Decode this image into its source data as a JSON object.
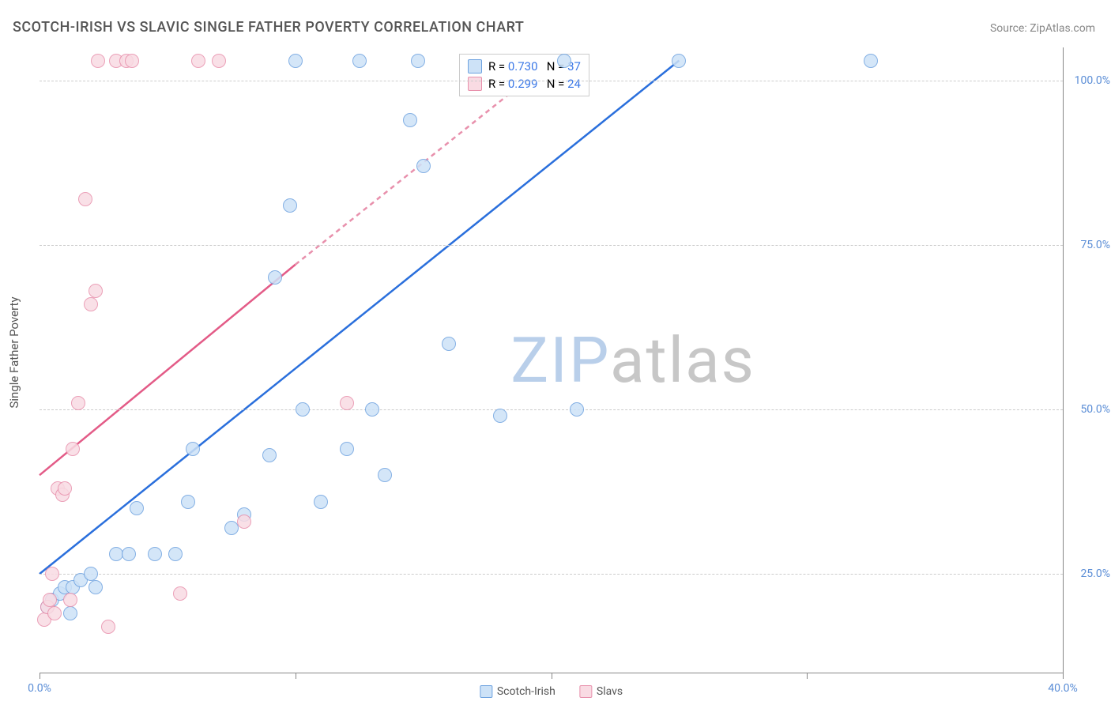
{
  "title": "SCOTCH-IRISH VS SLAVIC SINGLE FATHER POVERTY CORRELATION CHART",
  "source": "Source: ZipAtlas.com",
  "ylabel": "Single Father Poverty",
  "watermark": {
    "text1": "ZIP",
    "text2": "atlas",
    "color1": "#b9cfea",
    "color2": "#c7c7c7"
  },
  "chart": {
    "type": "scatter",
    "background_color": "#ffffff",
    "grid_color": "#cccccc",
    "xlim": [
      0,
      40
    ],
    "ylim": [
      10,
      105
    ],
    "xticks": [
      0,
      10,
      20,
      30,
      40
    ],
    "xtick_labels": [
      "0.0%",
      "",
      "",
      "",
      "40.0%"
    ],
    "yticks": [
      25,
      50,
      75,
      100
    ],
    "ytick_labels": [
      "25.0%",
      "50.0%",
      "75.0%",
      "100.0%"
    ],
    "tick_color": "#5a8dd6",
    "series": [
      {
        "name": "Scotch-Irish",
        "fill": "#cde2f7",
        "stroke": "#6fa3e0",
        "line_color": "#2a6fdc",
        "marker_radius": 9,
        "marker_opacity": 0.85,
        "R": "0.730",
        "N": "37",
        "trend": {
          "x1": 0,
          "y1": 25,
          "x2": 25,
          "y2": 103
        },
        "points": [
          [
            0.3,
            20
          ],
          [
            0.5,
            21
          ],
          [
            0.8,
            22
          ],
          [
            1.0,
            23
          ],
          [
            1.2,
            19
          ],
          [
            1.3,
            23
          ],
          [
            1.6,
            24
          ],
          [
            2.0,
            25
          ],
          [
            2.2,
            23
          ],
          [
            3.0,
            28
          ],
          [
            3.5,
            28
          ],
          [
            4.5,
            28
          ],
          [
            5.3,
            28
          ],
          [
            3.8,
            35
          ],
          [
            5.8,
            36
          ],
          [
            6.0,
            44
          ],
          [
            7.5,
            32
          ],
          [
            8.0,
            34
          ],
          [
            9.0,
            43
          ],
          [
            9.2,
            70
          ],
          [
            9.8,
            81
          ],
          [
            10.0,
            103
          ],
          [
            10.3,
            50
          ],
          [
            11.0,
            36
          ],
          [
            12.0,
            44
          ],
          [
            12.5,
            103
          ],
          [
            13.0,
            50
          ],
          [
            13.5,
            40
          ],
          [
            14.5,
            94
          ],
          [
            14.8,
            103
          ],
          [
            15.0,
            87
          ],
          [
            16.0,
            60
          ],
          [
            18.0,
            49
          ],
          [
            20.5,
            103
          ],
          [
            21.0,
            50
          ],
          [
            25.0,
            103
          ],
          [
            32.5,
            103
          ]
        ]
      },
      {
        "name": "Slavs",
        "fill": "#f9dbe3",
        "stroke": "#e890ac",
        "line_color": "#e35b87",
        "marker_radius": 9,
        "marker_opacity": 0.85,
        "R": "0.299",
        "N": "24",
        "trend_solid": {
          "x1": 0,
          "y1": 40,
          "x2": 10,
          "y2": 72
        },
        "trend_dash": {
          "x1": 10,
          "y1": 72,
          "x2": 20,
          "y2": 103
        },
        "points": [
          [
            0.2,
            18
          ],
          [
            0.3,
            20
          ],
          [
            0.4,
            21
          ],
          [
            0.5,
            25
          ],
          [
            0.6,
            19
          ],
          [
            0.7,
            38
          ],
          [
            0.9,
            37
          ],
          [
            1.0,
            38
          ],
          [
            1.2,
            21
          ],
          [
            1.3,
            44
          ],
          [
            1.5,
            51
          ],
          [
            1.8,
            82
          ],
          [
            2.0,
            66
          ],
          [
            2.2,
            68
          ],
          [
            2.3,
            103
          ],
          [
            2.7,
            17
          ],
          [
            3.0,
            103
          ],
          [
            3.4,
            103
          ],
          [
            3.6,
            103
          ],
          [
            5.5,
            22
          ],
          [
            6.2,
            103
          ],
          [
            8.0,
            33
          ],
          [
            12.0,
            51
          ],
          [
            7.0,
            103
          ]
        ]
      }
    ],
    "rbox": {
      "top_pct": 1,
      "left_pct": 41
    },
    "legend": {
      "labels": [
        "Scotch-Irish",
        "Slavs"
      ]
    }
  }
}
